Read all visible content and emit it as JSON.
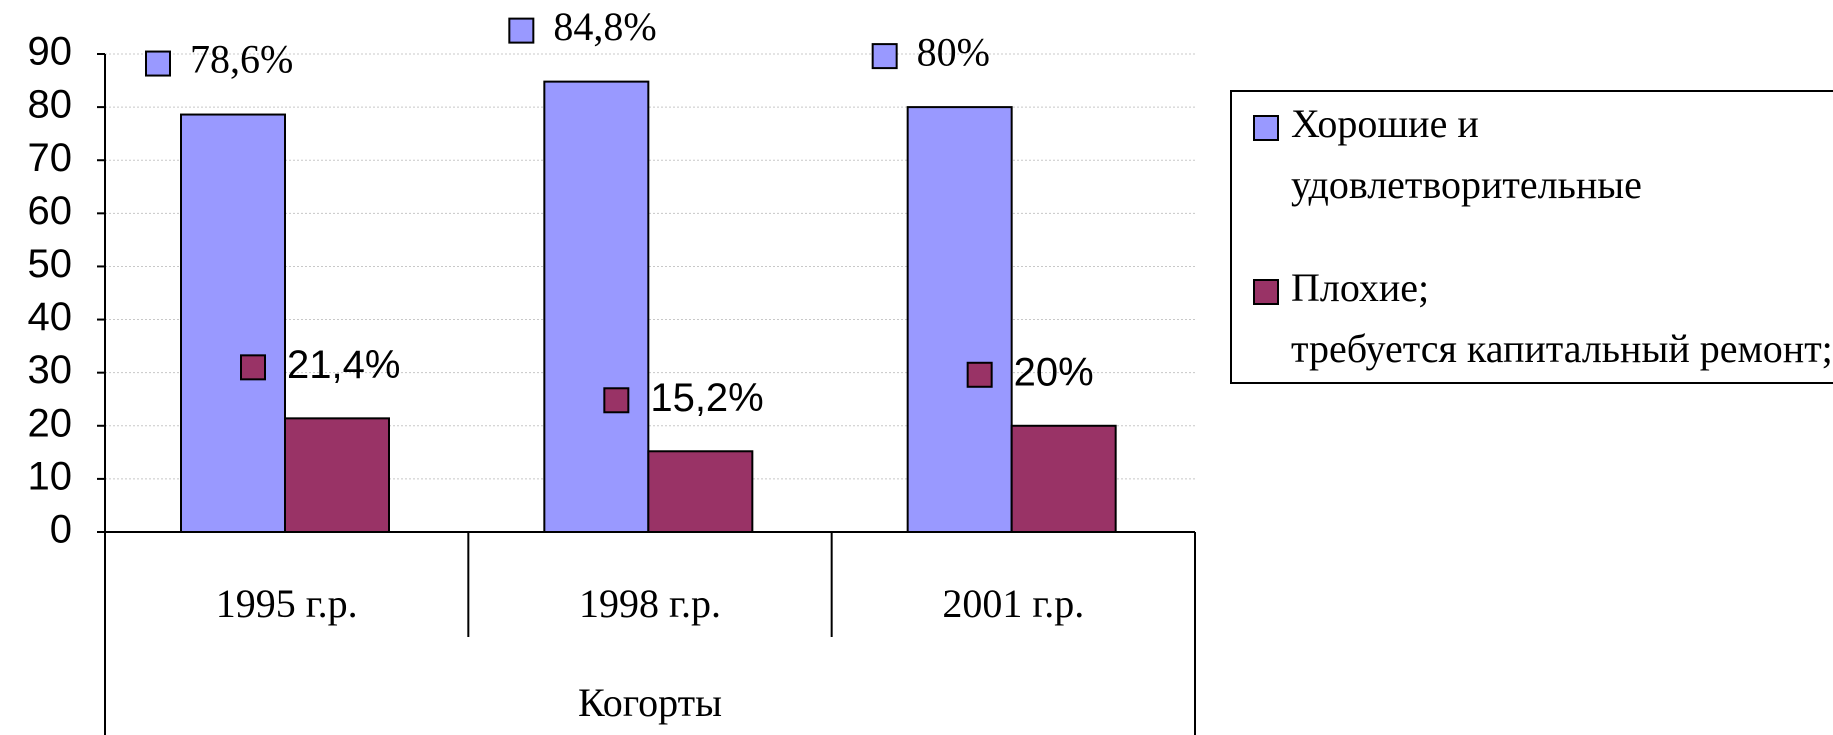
{
  "chart_data": {
    "type": "bar",
    "categories": [
      "1995 г.р.",
      "1998 г.р.",
      "2001 г.р."
    ],
    "x_label": "Когорты",
    "series": [
      {
        "name": "Хорошие и удовлетворительные",
        "color": "#9999ff",
        "values": [
          78.6,
          84.8,
          80
        ],
        "value_labels": [
          "78,6%",
          "84,8%",
          "80%"
        ]
      },
      {
        "name": "Плохие; требуется капитальный ремонт; очень",
        "color": "#993366",
        "values": [
          21.4,
          15.2,
          20
        ],
        "value_labels": [
          "21,4%",
          "15,2%",
          "20%"
        ]
      }
    ],
    "ylim": [
      0,
      90
    ],
    "yticks": [
      0,
      10,
      20,
      30,
      40,
      50,
      60,
      70,
      80,
      90
    ],
    "grid": true,
    "legend": "right"
  }
}
